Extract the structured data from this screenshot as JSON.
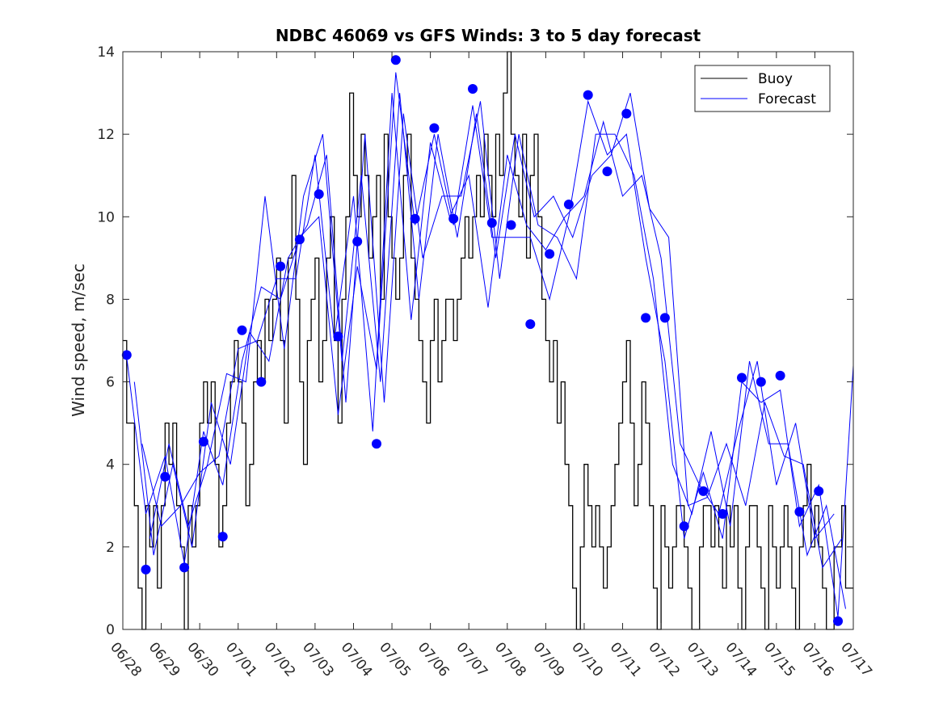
{
  "chart_data": {
    "type": "line",
    "title": "NDBC 46069 vs GFS Winds: 3 to 5 day forecast",
    "xlabel": "",
    "ylabel": "Wind speed, m/sec",
    "xlim": [
      0,
      19
    ],
    "ylim": [
      0,
      14
    ],
    "yticks": [
      0,
      2,
      4,
      6,
      8,
      10,
      12,
      14
    ],
    "xtick_labels": [
      "06/28",
      "06/29",
      "06/30",
      "07/01",
      "07/02",
      "07/03",
      "07/04",
      "07/05",
      "07/06",
      "07/07",
      "07/08",
      "07/09",
      "07/10",
      "07/11",
      "07/12",
      "07/13",
      "07/14",
      "07/15",
      "07/16",
      "07/17"
    ],
    "legend": {
      "position": "top-right",
      "entries": [
        {
          "label": "Buoy",
          "color": "#000000"
        },
        {
          "label": "Forecast",
          "color": "#0000ff"
        }
      ]
    },
    "colors": {
      "buoy": "#000000",
      "forecast": "#0000ff",
      "marker": "#0000ff"
    },
    "series": [
      {
        "name": "Buoy",
        "color": "#000000",
        "x": [
          0.0,
          0.1,
          0.2,
          0.3,
          0.4,
          0.5,
          0.6,
          0.7,
          0.8,
          0.9,
          1.0,
          1.1,
          1.2,
          1.3,
          1.4,
          1.5,
          1.6,
          1.7,
          1.8,
          1.9,
          2.0,
          2.1,
          2.2,
          2.3,
          2.4,
          2.5,
          2.6,
          2.7,
          2.8,
          2.9,
          3.0,
          3.1,
          3.2,
          3.3,
          3.4,
          3.5,
          3.6,
          3.7,
          3.8,
          3.9,
          4.0,
          4.1,
          4.2,
          4.3,
          4.4,
          4.5,
          4.6,
          4.7,
          4.8,
          4.9,
          5.0,
          5.1,
          5.2,
          5.3,
          5.4,
          5.5,
          5.6,
          5.7,
          5.8,
          5.9,
          6.0,
          6.1,
          6.2,
          6.3,
          6.4,
          6.5,
          6.6,
          6.7,
          6.8,
          6.9,
          7.0,
          7.1,
          7.2,
          7.3,
          7.4,
          7.5,
          7.6,
          7.7,
          7.8,
          7.9,
          8.0,
          8.1,
          8.2,
          8.3,
          8.4,
          8.5,
          8.6,
          8.7,
          8.8,
          8.9,
          9.0,
          9.1,
          9.2,
          9.3,
          9.4,
          9.5,
          9.6,
          9.7,
          9.8,
          9.9,
          10.0,
          10.1,
          10.2,
          10.3,
          10.4,
          10.5,
          10.6,
          10.7,
          10.8,
          10.9,
          11.0,
          11.1,
          11.2,
          11.3,
          11.4,
          11.5,
          11.6,
          11.7,
          11.8,
          11.9,
          12.0,
          12.1,
          12.2,
          12.3,
          12.4,
          12.5,
          12.6,
          12.7,
          12.8,
          12.9,
          13.0,
          13.1,
          13.2,
          13.3,
          13.4,
          13.5,
          13.6,
          13.7,
          13.8,
          13.9,
          14.0,
          14.1,
          14.2,
          14.3,
          14.4,
          14.5,
          14.6,
          14.7,
          14.8,
          14.9,
          15.0,
          15.1,
          15.2,
          15.3,
          15.4,
          15.5,
          15.6,
          15.7,
          15.8,
          15.9,
          16.0,
          16.1,
          16.2,
          16.3,
          16.4,
          16.5,
          16.6,
          16.7,
          16.8,
          16.9,
          17.0,
          17.1,
          17.2,
          17.3,
          17.4,
          17.5,
          17.6,
          17.7,
          17.8,
          17.9,
          18.0,
          18.1,
          18.2,
          18.3,
          18.4,
          18.5,
          18.6,
          18.7,
          18.8,
          18.9,
          19.0
        ],
        "values": [
          7,
          5,
          5,
          3,
          1,
          0,
          3,
          2,
          3,
          1,
          3,
          5,
          4,
          5,
          3,
          2,
          0,
          3,
          2,
          3,
          5,
          6,
          5,
          6,
          4,
          2,
          3,
          5,
          6,
          7,
          6,
          5,
          3,
          4,
          6,
          7,
          6,
          8,
          7,
          8,
          9,
          7,
          5,
          9,
          11,
          8,
          6,
          4,
          7,
          8,
          9,
          6,
          7,
          9,
          10,
          7,
          5,
          8,
          10,
          13,
          11,
          10,
          12,
          11,
          9,
          10,
          11,
          8,
          12,
          10,
          9,
          8,
          9,
          11,
          12,
          9,
          8,
          7,
          6,
          5,
          7,
          8,
          6,
          7,
          8,
          8,
          7,
          8,
          9,
          10,
          9,
          10,
          11,
          10,
          12,
          11,
          10,
          12,
          11,
          13,
          14,
          12,
          11,
          10,
          12,
          9,
          11,
          12,
          10,
          8,
          7,
          6,
          7,
          5,
          6,
          4,
          3,
          1,
          0,
          2,
          4,
          3,
          2,
          3,
          2,
          1,
          2,
          3,
          4,
          5,
          6,
          7,
          5,
          3,
          4,
          6,
          5,
          3,
          1,
          0,
          3,
          2,
          1,
          2,
          3,
          3,
          2,
          1,
          0,
          0,
          2,
          3,
          3,
          2,
          3,
          2,
          1,
          3,
          2,
          3,
          1,
          0,
          2,
          3,
          3,
          2,
          1,
          0,
          3,
          2,
          1,
          2,
          3,
          2,
          1,
          0,
          2,
          3,
          4,
          2,
          3,
          2,
          1,
          0,
          0,
          2,
          2,
          3,
          1,
          1,
          1
        ]
      },
      {
        "name": "Forecast",
        "color": "#0000ff",
        "x": [
          0.1,
          0.6,
          1.1,
          1.6,
          2.1,
          2.6,
          3.1,
          3.6,
          4.1,
          4.6,
          5.1,
          5.6,
          6.1,
          6.6,
          7.1,
          7.6,
          8.1,
          8.6,
          9.1,
          9.6,
          10.1,
          10.6,
          11.1,
          11.6,
          12.1,
          12.6,
          13.1,
          13.6,
          14.1,
          14.6,
          15.1,
          15.6,
          16.1,
          16.6,
          17.1,
          17.6,
          18.1,
          18.6,
          19.0
        ],
        "values": [
          6.6,
          2.8,
          4.2,
          1.6,
          4.8,
          3.5,
          6.5,
          8.3,
          8.0,
          9.5,
          10.0,
          5.2,
          8.8,
          6.3,
          13.5,
          9.8,
          12.0,
          9.8,
          12.7,
          9.5,
          9.5,
          9.5,
          8.0,
          10.0,
          12.8,
          11.5,
          12.0,
          9.0,
          6.5,
          2.2,
          3.8,
          2.2,
          6.0,
          5.5,
          5.8,
          2.5,
          3.5,
          0.3,
          6.4
        ]
      },
      {
        "name": "Forecast",
        "color": "#0000ff",
        "x": [
          0.3,
          0.8,
          1.3,
          1.8,
          2.3,
          2.8,
          3.3,
          3.8,
          4.3,
          4.8,
          5.3,
          5.8,
          6.3,
          6.8,
          7.3,
          7.8,
          8.3,
          8.8,
          9.3,
          9.8,
          10.3,
          10.8,
          11.3,
          11.8,
          12.3,
          12.8,
          13.3,
          13.8,
          14.3,
          14.8,
          15.3,
          15.8,
          16.3,
          16.8,
          17.3,
          17.8,
          18.3,
          18.8
        ],
        "values": [
          6.0,
          1.8,
          4.0,
          2.0,
          5.5,
          4.0,
          7.2,
          6.5,
          9.0,
          9.8,
          11.5,
          5.5,
          12.0,
          5.5,
          12.5,
          9.0,
          10.5,
          10.5,
          12.8,
          8.5,
          12.0,
          9.8,
          9.5,
          8.5,
          12.0,
          12.0,
          11.0,
          8.5,
          4.0,
          2.8,
          4.8,
          2.5,
          6.5,
          4.5,
          4.5,
          1.8,
          3.0,
          0.5
        ]
      },
      {
        "name": "Forecast",
        "color": "#0000ff",
        "x": [
          0.5,
          1.0,
          1.5,
          2.0,
          2.5,
          3.0,
          3.5,
          4.0,
          4.5,
          5.0,
          5.5,
          6.0,
          6.5,
          7.0,
          7.5,
          8.0,
          8.5,
          9.0,
          9.5,
          10.0,
          10.5,
          11.0,
          11.5,
          12.0,
          12.5,
          13.0,
          13.5,
          14.0,
          14.5,
          15.0,
          15.5,
          16.0,
          16.5,
          17.0,
          17.5,
          18.0,
          18.5
        ],
        "values": [
          4.5,
          2.5,
          3.0,
          3.8,
          4.2,
          6.8,
          7.0,
          8.5,
          8.5,
          11.5,
          7.0,
          10.5,
          4.8,
          13.0,
          7.5,
          11.8,
          10.0,
          11.0,
          7.8,
          11.5,
          9.8,
          9.2,
          10.0,
          10.5,
          12.3,
          10.5,
          11.0,
          9.0,
          4.5,
          3.5,
          2.8,
          4.8,
          6.5,
          3.5,
          5.0,
          2.2,
          2.8
        ]
      },
      {
        "name": "Forecast",
        "color": "#0000ff",
        "x": [
          0.7,
          1.2,
          1.7,
          2.2,
          2.7,
          3.2,
          3.7,
          4.2,
          4.7,
          5.2,
          5.7,
          6.2,
          6.7,
          7.2,
          7.7,
          8.2,
          8.7,
          9.2,
          9.7,
          10.2,
          10.7,
          11.2,
          11.7,
          12.2,
          12.7,
          13.2,
          13.7,
          14.2,
          14.7,
          15.2,
          15.7,
          16.2,
          16.7,
          17.2,
          17.7,
          18.2,
          18.7
        ],
        "values": [
          2.2,
          4.5,
          2.5,
          4.0,
          6.2,
          6.0,
          10.5,
          6.8,
          10.5,
          12.0,
          6.5,
          11.0,
          6.0,
          13.0,
          8.0,
          12.0,
          9.5,
          12.5,
          9.0,
          12.0,
          10.0,
          10.5,
          9.5,
          11.0,
          11.5,
          13.0,
          10.2,
          9.5,
          3.0,
          3.2,
          4.5,
          3.0,
          5.5,
          4.2,
          4.0,
          1.5,
          2.2
        ]
      }
    ],
    "markers": {
      "name": "Forecast points",
      "color": "#0000ff",
      "x": [
        0.1,
        0.6,
        1.1,
        1.6,
        2.1,
        2.6,
        3.1,
        3.6,
        4.1,
        4.6,
        5.1,
        5.6,
        6.1,
        6.6,
        7.1,
        7.6,
        8.1,
        8.6,
        9.1,
        9.6,
        10.1,
        10.6,
        11.1,
        11.6,
        12.1,
        12.6,
        13.1,
        13.6,
        14.1,
        14.6,
        15.1,
        15.6,
        16.1,
        16.6,
        17.1,
        17.6,
        18.1,
        18.6
      ],
      "values": [
        6.65,
        1.45,
        3.7,
        1.5,
        4.55,
        2.25,
        7.25,
        6.0,
        8.8,
        9.45,
        10.55,
        7.1,
        9.4,
        4.5,
        13.8,
        9.95,
        12.15,
        9.95,
        13.1,
        9.85,
        9.8,
        7.4,
        9.1,
        10.3,
        12.95,
        11.1,
        12.5,
        7.55,
        7.55,
        2.5,
        3.35,
        2.8,
        6.1,
        6.0,
        6.15,
        2.85,
        3.35,
        0.2
      ]
    }
  }
}
